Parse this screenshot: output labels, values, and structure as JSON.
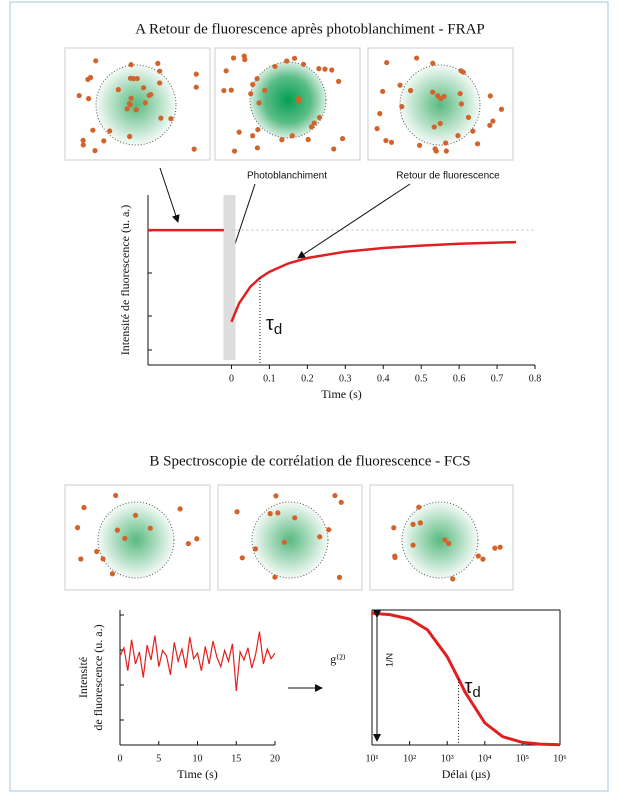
{
  "panel_a": {
    "title": "A Retour de fluorescence après photoblanchiment - FRAP",
    "annotations": [
      "Photoblanchiment",
      "Retour de fluorescence"
    ],
    "chart_data": {
      "type": "line",
      "xlabel": "Time (s)",
      "ylabel": "Intensité de fluorescence (u. a.)",
      "xlim": [
        -0.22,
        0.8
      ],
      "ylim": [
        0,
        1.26
      ],
      "xticks": [
        0,
        0.1,
        0.2,
        0.3,
        0.4,
        0.5,
        0.6,
        0.7,
        0.8
      ],
      "tau": 0.075,
      "tau_label": {
        "symbol": "τ",
        "subscript": "d"
      },
      "series": [
        {
          "color": "#e02020",
          "x": [
            -0.22,
            -0.02
          ],
          "values": [
            1,
            1
          ]
        },
        {
          "color": "#e02020",
          "x": [
            0,
            0.02,
            0.05,
            0.075,
            0.1,
            0.15,
            0.2,
            0.3,
            0.4,
            0.5,
            0.6,
            0.75
          ],
          "values": [
            0.32,
            0.457,
            0.58,
            0.645,
            0.691,
            0.753,
            0.793,
            0.84,
            0.867,
            0.885,
            0.898,
            0.911
          ]
        }
      ]
    }
  },
  "panel_b": {
    "title": "B Spectroscopie de corrélation de fluorescence - FCS",
    "trace": {
      "type": "line",
      "xlabel": "Time (s)",
      "ylabel": [
        "Intensité",
        "de fluorescence (u. a.)"
      ],
      "xlim": [
        0,
        20
      ],
      "ylim": [
        0,
        1
      ],
      "xticks": [
        0,
        5,
        10,
        15,
        20
      ],
      "series": [
        {
          "color": "#e02020",
          "x": [
            0,
            0.5,
            1,
            1.5,
            2,
            2.5,
            3,
            3.5,
            4,
            4.5,
            5,
            5.5,
            6,
            6.5,
            7,
            7.5,
            8,
            8.5,
            9,
            9.5,
            10,
            10.5,
            11,
            11.5,
            12,
            12.5,
            13,
            13.5,
            14,
            14.5,
            15,
            15.5,
            16,
            16.5,
            17,
            17.5,
            18,
            18.5,
            19,
            19.5,
            20
          ],
          "values": [
            0.66,
            0.72,
            0.55,
            0.78,
            0.6,
            0.69,
            0.5,
            0.74,
            0.63,
            0.81,
            0.58,
            0.7,
            0.66,
            0.52,
            0.76,
            0.62,
            0.71,
            0.57,
            0.8,
            0.64,
            0.68,
            0.55,
            0.73,
            0.6,
            0.77,
            0.65,
            0.58,
            0.7,
            0.62,
            0.75,
            0.4,
            0.69,
            0.63,
            0.72,
            0.57,
            0.67,
            0.84,
            0.6,
            0.71,
            0.64,
            0.68
          ]
        }
      ]
    },
    "correlation": {
      "type": "line",
      "xscale": "log",
      "xlabel": "Délai  (µs)",
      "ylabel": "g⁽²⁾",
      "amplitude_label": "1/N",
      "tau": 2000,
      "tau_label": {
        "symbol": "τ",
        "subscript": "d"
      },
      "xlim": [
        10,
        1000000
      ],
      "ylim": [
        0,
        1.02
      ],
      "xticks": [
        {
          "value": 10,
          "label": "10¹"
        },
        {
          "value": 100,
          "label": "10²"
        },
        {
          "value": 1000,
          "label": "10³"
        },
        {
          "value": 10000,
          "label": "10⁴"
        },
        {
          "value": 100000,
          "label": "10⁵"
        },
        {
          "value": 1000000,
          "label": "10⁶"
        }
      ],
      "series": [
        {
          "color": "#e02020",
          "x": [
            10,
            30,
            100,
            300,
            1000,
            2000,
            3000,
            10000,
            30000,
            100000,
            300000,
            1000000
          ],
          "values": [
            0.995,
            0.985,
            0.952,
            0.87,
            0.667,
            0.5,
            0.4,
            0.167,
            0.0625,
            0.0196,
            0.0066,
            0.002
          ]
        }
      ]
    }
  }
}
